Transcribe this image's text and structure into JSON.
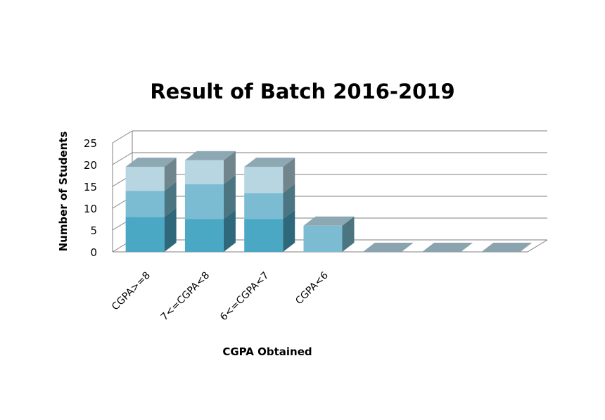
{
  "chart_data": {
    "type": "bar",
    "stacked": true,
    "three_d": true,
    "title": "Result of Batch 2016-2019",
    "xlabel": "CGPA Obtained",
    "ylabel": "Number of Students",
    "ylim": [
      0,
      25
    ],
    "yticks": [
      "0",
      "5",
      "10",
      "15",
      "20",
      "25"
    ],
    "grid": true,
    "categories": [
      "CGPA>=8",
      "7<=CGPA<8",
      "6<=CGPA<7",
      "CGPA<6",
      "",
      "",
      ""
    ],
    "series": [
      {
        "values": [
          8,
          7.5,
          7.5,
          0,
          0,
          0,
          0
        ],
        "color": "#4aa8c4"
      },
      {
        "values": [
          6,
          8,
          6,
          6,
          0,
          0,
          0
        ],
        "color": "#7bbcd2"
      },
      {
        "values": [
          5.5,
          5.5,
          6,
          0,
          0,
          0,
          0
        ],
        "color": "#b7d6e2"
      }
    ],
    "colors": {
      "grid": "#7f7f7f",
      "empty_cap": "#8aa3af"
    }
  }
}
